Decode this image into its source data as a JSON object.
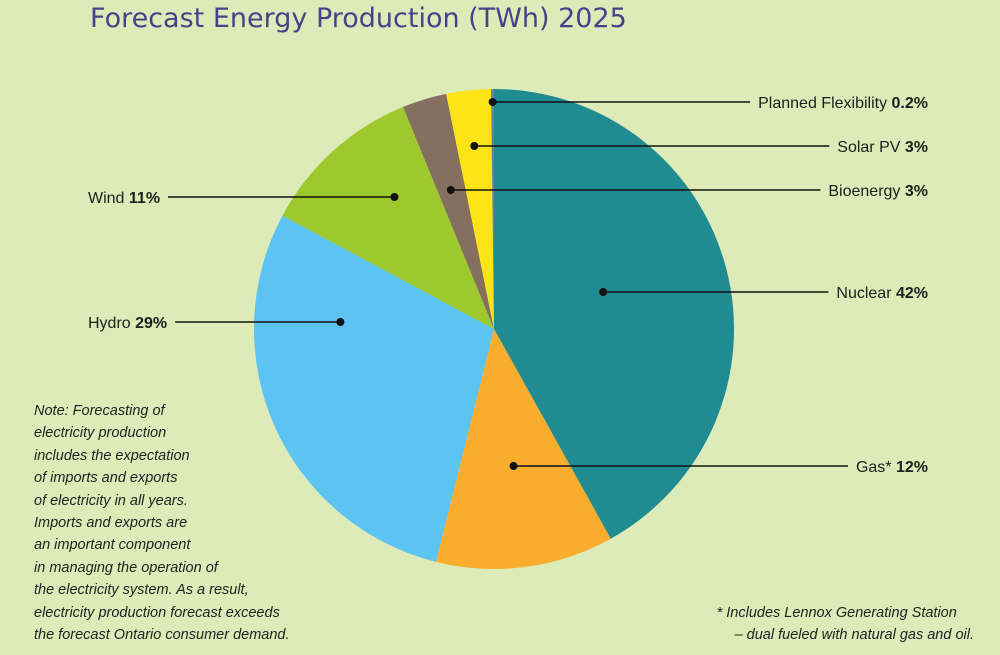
{
  "chart_data": {
    "type": "pie",
    "title": "Forecast Energy Production (TWh) 2025",
    "start_angle": "12 o'clock",
    "direction": "clockwise",
    "slices": [
      {
        "name": "Nuclear",
        "value": 42,
        "label": "42%",
        "color": "#218b92"
      },
      {
        "name": "Gas*",
        "value": 12,
        "label": "12%",
        "color": "#f8ad2d"
      },
      {
        "name": "Hydro",
        "value": 29,
        "label": "29%",
        "color": "#5dc3f3"
      },
      {
        "name": "Wind",
        "value": 11,
        "label": "11%",
        "color": "#9dc92f"
      },
      {
        "name": "Bioenergy",
        "value": 3,
        "label": "3%",
        "color": "#85705f"
      },
      {
        "name": "Solar PV",
        "value": 3,
        "label": "3%",
        "color": "#fce416"
      },
      {
        "name": "Planned Flexibility",
        "value": 0.2,
        "label": "0.2%",
        "color": "#6b7f9e"
      }
    ]
  },
  "note": {
    "lines": [
      "Note: Forecasting of",
      "electricity production",
      "includes the expectation",
      "of imports and exports",
      "of electricity in all years.",
      "Imports and exports are",
      "an important component",
      "in managing the operation of",
      "the electricity system. As a result,",
      "electricity production forecast exceeds",
      "the forecast Ontario consumer demand."
    ]
  },
  "footnote": {
    "line1": "* Includes Lennox Generating Station",
    "line2": "– dual fueled with natural gas and oil."
  }
}
